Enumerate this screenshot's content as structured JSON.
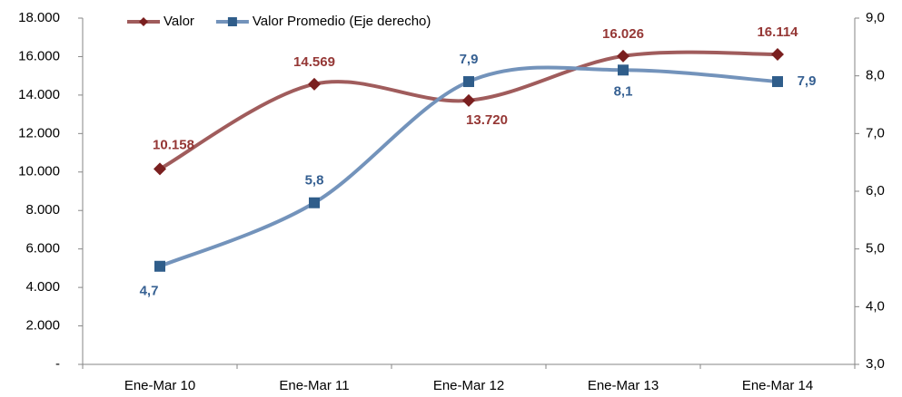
{
  "chart_data": {
    "type": "line",
    "categories": [
      "Ene-Mar 10",
      "Ene-Mar 11",
      "Ene-Mar 12",
      "Ene-Mar 13",
      "Ene-Mar 14"
    ],
    "series": [
      {
        "name": "Valor",
        "color": "#a05c5c",
        "marker_color": "#7a1f1f",
        "label_color": "#953735",
        "values": [
          10158,
          14569,
          13720,
          16026,
          16114
        ],
        "value_labels": [
          "10.158",
          "14.569",
          "13.720",
          "16.026",
          "16.114"
        ]
      },
      {
        "name": "Valor Promedio (Eje derecho)",
        "axis": "y2",
        "color": "#7393bb",
        "marker_color": "#2f5d8a",
        "label_color": "#366092",
        "values": [
          4.7,
          5.8,
          7.9,
          8.1,
          7.9
        ],
        "value_labels": [
          "4,7",
          "5,8",
          "7,9",
          "8,1",
          "7,9"
        ]
      }
    ],
    "ylim": [
      0,
      18000
    ],
    "yticks": [
      {
        "value": 0,
        "label": "-"
      },
      {
        "value": 2000,
        "label": "2.000"
      },
      {
        "value": 4000,
        "label": "4.000"
      },
      {
        "value": 6000,
        "label": "6.000"
      },
      {
        "value": 8000,
        "label": "8.000"
      },
      {
        "value": 10000,
        "label": "10.000"
      },
      {
        "value": 12000,
        "label": "12.000"
      },
      {
        "value": 14000,
        "label": "14.000"
      },
      {
        "value": 16000,
        "label": "16.000"
      },
      {
        "value": 18000,
        "label": "18.000"
      }
    ],
    "y2lim": [
      3,
      9
    ],
    "y2ticks": [
      {
        "value": 3,
        "label": "3,0"
      },
      {
        "value": 4,
        "label": "4,0"
      },
      {
        "value": 5,
        "label": "5,0"
      },
      {
        "value": 6,
        "label": "6,0"
      },
      {
        "value": 7,
        "label": "7,0"
      },
      {
        "value": 8,
        "label": "8,0"
      },
      {
        "value": 9,
        "label": "9,0"
      }
    ],
    "grid": false,
    "legend": "top-left",
    "smooth": true
  }
}
